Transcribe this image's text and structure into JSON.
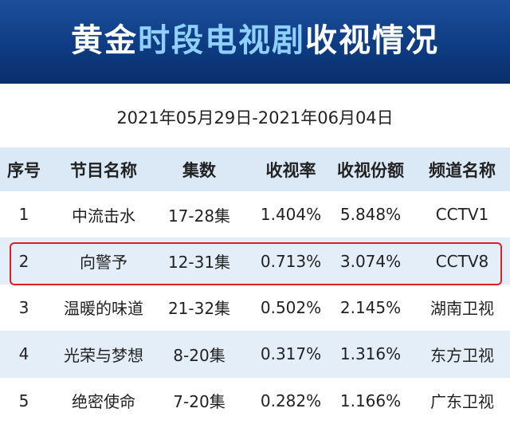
{
  "header": {
    "title_parts": [
      "黄金",
      "时段电视剧",
      "收视情况"
    ]
  },
  "date_range": "2021年05月29日-2021年06月04日",
  "table": {
    "columns": [
      "序号",
      "节目名称",
      "集数",
      "收视率",
      "收视份额",
      "频道名称"
    ],
    "rows": [
      [
        "1",
        "中流击水",
        "17-28集",
        "1.404%",
        "5.848%",
        "CCTV1"
      ],
      [
        "2",
        "向警予",
        "12-31集",
        "0.713%",
        "3.074%",
        "CCTV8"
      ],
      [
        "3",
        "温暖的味道",
        "21-32集",
        "0.502%",
        "2.145%",
        "湖南卫视"
      ],
      [
        "4",
        "光荣与梦想",
        "8-20集",
        "0.317%",
        "1.316%",
        "东方卫视"
      ],
      [
        "5",
        "绝密使命",
        "7-20集",
        "0.282%",
        "1.166%",
        "广东卫视"
      ]
    ]
  }
}
